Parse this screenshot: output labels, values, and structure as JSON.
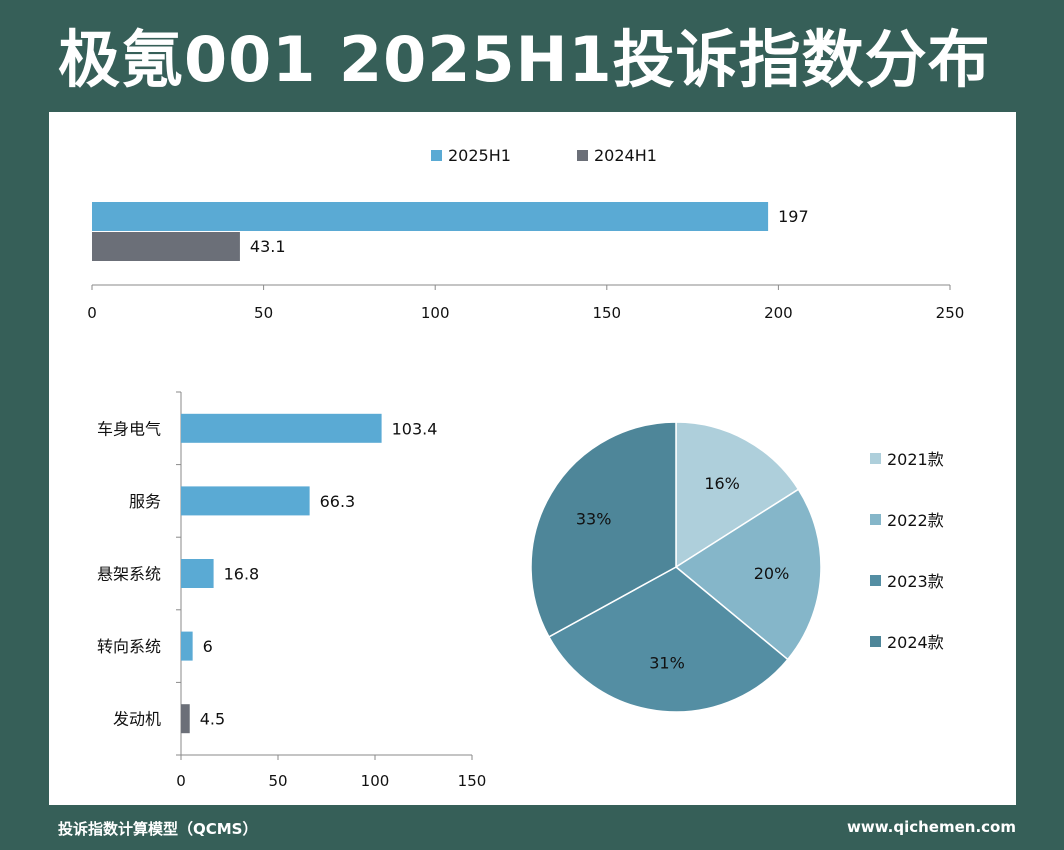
{
  "page": {
    "title": "极氪001 2025H1投诉指数分布",
    "footer_left": "投诉指数计算模型（QCMS）",
    "footer_right": "www.qichemen.com"
  },
  "colors": {
    "background": "#365f58",
    "bar_blue": "#5aaad4",
    "bar_gray": "#6b6f78",
    "pie": [
      "#aecfdb",
      "#85b6c9",
      "#548ea3",
      "#4e8699"
    ]
  },
  "chart_data": [
    {
      "type": "bar",
      "orientation": "horizontal",
      "series": [
        {
          "name": "2025H1",
          "values": [
            197
          ],
          "color": "#5aaad4"
        },
        {
          "name": "2024H1",
          "values": [
            43.1
          ],
          "color": "#6b6f78"
        }
      ],
      "data_labels": [
        "197",
        "43.1"
      ],
      "xlim": [
        0,
        250
      ],
      "xticks": [
        "0",
        "50",
        "100",
        "150",
        "200",
        "250"
      ],
      "legend": "top-center"
    },
    {
      "type": "bar",
      "orientation": "horizontal",
      "categories": [
        "车身电气",
        "服务",
        "悬架系统",
        "转向系统",
        "发动机"
      ],
      "values": [
        103.4,
        66.3,
        16.8,
        6,
        4.5
      ],
      "data_labels": [
        "103.4",
        "66.3",
        "16.8",
        "6",
        "4.5"
      ],
      "bar_colors": [
        "#5aaad4",
        "#5aaad4",
        "#5aaad4",
        "#5aaad4",
        "#6b6f78"
      ],
      "xlim": [
        0,
        150
      ],
      "xticks": [
        "0",
        "50",
        "100",
        "150"
      ]
    },
    {
      "type": "pie",
      "labels": [
        "2021款",
        "2022款",
        "2023款",
        "2024款"
      ],
      "values": [
        16,
        20,
        31,
        33
      ],
      "data_labels": [
        "16%",
        "20%",
        "31%",
        "33%"
      ],
      "colors": [
        "#aecfdb",
        "#85b6c9",
        "#548ea3",
        "#4e8699"
      ],
      "legend": "right"
    }
  ]
}
